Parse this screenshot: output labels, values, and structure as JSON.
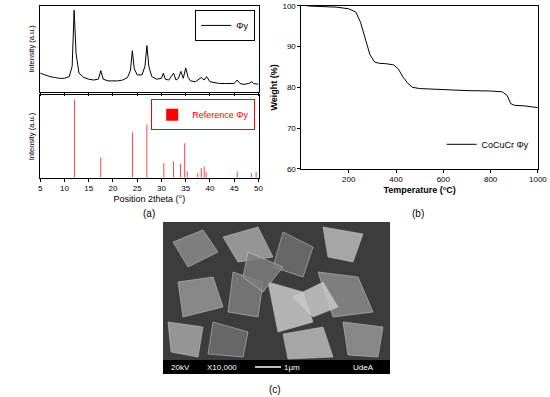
{
  "chart_data": [
    {
      "type": "line",
      "y_label": "Intensity (a.u.)",
      "xlim": [
        5,
        50
      ],
      "xticks": [
        5,
        10,
        15,
        20,
        25,
        30,
        35,
        40,
        45,
        50
      ],
      "ylim": [
        0,
        1
      ],
      "tick_labels": false,
      "legend": "top right",
      "series": [
        {
          "name": "Φy",
          "color": "#000000",
          "x": [
            5,
            6,
            7,
            8,
            9,
            10,
            11,
            11.6,
            12.0,
            12.4,
            13,
            14,
            15,
            16,
            17,
            17.5,
            18,
            19,
            20,
            21,
            22,
            23,
            23.6,
            24.0,
            24.4,
            25,
            26,
            26.6,
            27.0,
            27.4,
            28,
            29,
            30,
            30.4,
            30.8,
            31.5,
            32.5,
            33,
            33.5,
            34.0,
            34.5,
            35.0,
            35.5,
            36,
            37,
            37.6,
            38.2,
            38.8,
            39.3,
            40,
            41,
            42,
            43,
            44,
            45,
            45.6,
            46.2,
            47,
            48,
            48.6,
            49,
            50
          ],
          "values": [
            0.22,
            0.2,
            0.18,
            0.17,
            0.16,
            0.16,
            0.18,
            0.3,
            0.95,
            0.45,
            0.22,
            0.17,
            0.15,
            0.14,
            0.15,
            0.25,
            0.15,
            0.13,
            0.13,
            0.13,
            0.14,
            0.17,
            0.25,
            0.48,
            0.27,
            0.2,
            0.2,
            0.3,
            0.54,
            0.3,
            0.18,
            0.15,
            0.16,
            0.22,
            0.15,
            0.14,
            0.22,
            0.14,
            0.16,
            0.24,
            0.16,
            0.28,
            0.17,
            0.13,
            0.12,
            0.14,
            0.17,
            0.14,
            0.18,
            0.12,
            0.11,
            0.1,
            0.1,
            0.1,
            0.1,
            0.14,
            0.1,
            0.09,
            0.1,
            0.12,
            0.1,
            0.09
          ]
        }
      ]
    },
    {
      "type": "bar",
      "x_label": "Position 2theta (°)",
      "y_label": "Intensity (a.u.)",
      "xlim": [
        5,
        50
      ],
      "xticks": [
        5,
        10,
        15,
        20,
        25,
        30,
        35,
        40,
        45,
        50
      ],
      "ylim": [
        0,
        1
      ],
      "tick_labels": "x",
      "legend": "top right",
      "series": [
        {
          "name": "Reference Φy",
          "color": "#ff0000",
          "x": [
            12.1,
            17.5,
            24.0,
            27.0,
            30.5,
            32.5,
            33.9,
            34.8,
            35.3,
            37.5,
            38.2,
            38.8,
            39.2,
            45.6,
            48.5,
            49.5
          ],
          "values": [
            0.95,
            0.25,
            0.55,
            0.65,
            0.18,
            0.2,
            0.17,
            0.42,
            0.08,
            0.06,
            0.12,
            0.14,
            0.07,
            0.08,
            0.06,
            0.07
          ]
        }
      ]
    },
    {
      "type": "line",
      "x_label": "Temperature (°C)",
      "y_label": "Weight (%)",
      "xlim": [
        0,
        1000
      ],
      "xticks": [
        200,
        400,
        600,
        800,
        1000
      ],
      "ylim": [
        60,
        100
      ],
      "yticks": [
        60,
        70,
        80,
        90,
        100
      ],
      "legend": "bottom right",
      "series": [
        {
          "name": "CoCuCr Φy",
          "color": "#000000",
          "x": [
            25,
            100,
            150,
            200,
            230,
            250,
            270,
            290,
            310,
            330,
            360,
            390,
            410,
            430,
            450,
            470,
            500,
            600,
            700,
            800,
            850,
            870,
            885,
            900,
            950,
            1000
          ],
          "values": [
            100,
            99.9,
            99.7,
            99.3,
            98.5,
            96,
            92,
            88,
            86.2,
            85.9,
            85.8,
            85.5,
            84.5,
            82.5,
            81,
            80,
            79.7,
            79.4,
            79.2,
            79.1,
            78.9,
            78,
            76,
            75.6,
            75.4,
            75
          ]
        }
      ]
    }
  ],
  "panel_labels": [
    "(a)",
    "(b)",
    "(c)"
  ],
  "image": {
    "labels": [
      "20kV",
      "X10,000",
      "1μm",
      "UdeA"
    ]
  }
}
